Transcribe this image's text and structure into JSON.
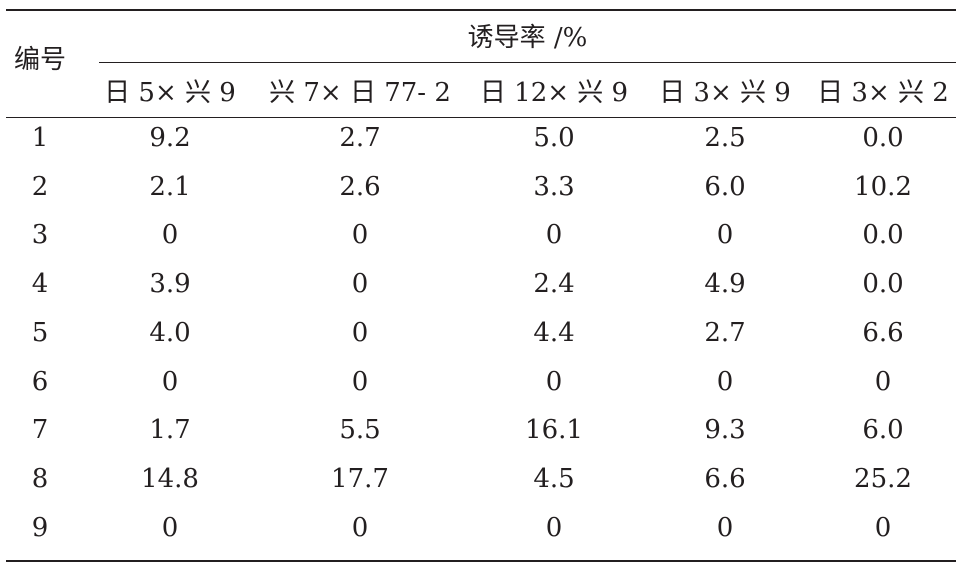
{
  "table": {
    "header_no": "编号",
    "header_group": "诱导率 /%",
    "columns": [
      "日 5× 兴 9",
      "兴 7× 日 77- 2",
      "日 12× 兴 9",
      "日 3× 兴 9",
      "日 3× 兴 2"
    ],
    "rows": [
      {
        "no": "1",
        "values": [
          "9.2",
          "2.7",
          "5.0",
          "2.5",
          "0.0"
        ]
      },
      {
        "no": "2",
        "values": [
          "2.1",
          "2.6",
          "3.3",
          "6.0",
          "10.2"
        ]
      },
      {
        "no": "3",
        "values": [
          "0",
          "0",
          "0",
          "0",
          "0.0"
        ]
      },
      {
        "no": "4",
        "values": [
          "3.9",
          "0",
          "2.4",
          "4.9",
          "0.0"
        ]
      },
      {
        "no": "5",
        "values": [
          "4.0",
          "0",
          "4.4",
          "2.7",
          "6.6"
        ]
      },
      {
        "no": "6",
        "values": [
          "0",
          "0",
          "0",
          "0",
          "0"
        ]
      },
      {
        "no": "7",
        "values": [
          "1.7",
          "5.5",
          "16.1",
          "9.3",
          "6.0"
        ]
      },
      {
        "no": "8",
        "values": [
          "14.8",
          "17.7",
          "4.5",
          "6.6",
          "25.2"
        ]
      },
      {
        "no": "9",
        "values": [
          "0",
          "0",
          "0",
          "0",
          "0"
        ]
      }
    ]
  }
}
